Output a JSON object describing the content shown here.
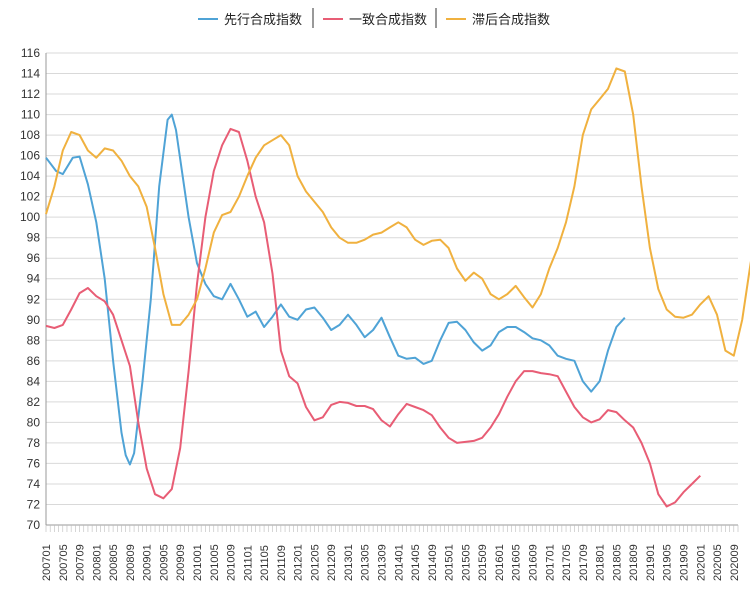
{
  "chart_data": {
    "type": "line",
    "legend_position": "top",
    "grid": true,
    "ylim": [
      70,
      116
    ],
    "y_ticks": [
      "70",
      "72",
      "74",
      "76",
      "78",
      "80",
      "82",
      "84",
      "86",
      "88",
      "90",
      "92",
      "94",
      "96",
      "98",
      "100",
      "102",
      "104",
      "106",
      "108",
      "110",
      "112",
      "114",
      "116"
    ],
    "x_tick_labels": [
      "200701",
      "200705",
      "200709",
      "200801",
      "200805",
      "200809",
      "200901",
      "200905",
      "200909",
      "201001",
      "201005",
      "201009",
      "201101",
      "201105",
      "201109",
      "201201",
      "201205",
      "201209",
      "201301",
      "201305",
      "201309",
      "201401",
      "201405",
      "201409",
      "201501",
      "201505",
      "201509",
      "201601",
      "201605",
      "201609",
      "201701",
      "201705",
      "201709",
      "201801",
      "201805",
      "201809",
      "201901",
      "201905",
      "201909",
      "202001",
      "202005",
      "202009"
    ],
    "series": [
      {
        "name": "先行合成指数",
        "color": "#4fa3d6",
        "points": [
          [
            0,
            105.8
          ],
          [
            1.2,
            104.5
          ],
          [
            2,
            104.2
          ],
          [
            3.2,
            105.8
          ],
          [
            4,
            105.9
          ],
          [
            5,
            103.2
          ],
          [
            6,
            99.5
          ],
          [
            7,
            94
          ],
          [
            8,
            86
          ],
          [
            9,
            79
          ],
          [
            9.5,
            76.8
          ],
          [
            10,
            75.9
          ],
          [
            10.5,
            77
          ],
          [
            11.5,
            84
          ],
          [
            12.5,
            92
          ],
          [
            13.5,
            103
          ],
          [
            14.5,
            109.5
          ],
          [
            15,
            110
          ],
          [
            15.5,
            108.5
          ],
          [
            17,
            100
          ],
          [
            18,
            95.5
          ],
          [
            19,
            93.5
          ],
          [
            20,
            92.3
          ],
          [
            21,
            92
          ],
          [
            22,
            93.5
          ],
          [
            23,
            92
          ],
          [
            24,
            90.3
          ],
          [
            25,
            90.8
          ],
          [
            26,
            89.3
          ],
          [
            27,
            90.3
          ],
          [
            28,
            91.5
          ],
          [
            29,
            90.3
          ],
          [
            30,
            90
          ],
          [
            31,
            91
          ],
          [
            32,
            91.2
          ],
          [
            33,
            90.2
          ],
          [
            34,
            89
          ],
          [
            35,
            89.5
          ],
          [
            36,
            90.5
          ],
          [
            37,
            89.5
          ],
          [
            38,
            88.3
          ],
          [
            39,
            89
          ],
          [
            40,
            90.2
          ],
          [
            41,
            88.3
          ],
          [
            42,
            86.5
          ],
          [
            43,
            86.2
          ],
          [
            44,
            86.3
          ],
          [
            45,
            85.7
          ],
          [
            46,
            86
          ],
          [
            47,
            88
          ],
          [
            48,
            89.7
          ],
          [
            49,
            89.8
          ],
          [
            50,
            89
          ],
          [
            51,
            87.8
          ],
          [
            52,
            87
          ],
          [
            53,
            87.5
          ],
          [
            54,
            88.8
          ],
          [
            55,
            89.3
          ],
          [
            56,
            89.3
          ],
          [
            57,
            88.8
          ],
          [
            58,
            88.2
          ],
          [
            59,
            88
          ],
          [
            60,
            87.5
          ],
          [
            61,
            86.5
          ],
          [
            62,
            86.2
          ],
          [
            63,
            86
          ],
          [
            64,
            84
          ],
          [
            65,
            83
          ],
          [
            66,
            84
          ],
          [
            67,
            87
          ],
          [
            68,
            89.3
          ],
          [
            69,
            90.2
          ]
        ]
      },
      {
        "name": "一致合成指数",
        "color": "#e85d75",
        "points": [
          [
            0,
            89.4
          ],
          [
            1,
            89.2
          ],
          [
            2,
            89.5
          ],
          [
            3,
            91
          ],
          [
            4,
            92.6
          ],
          [
            5,
            93.1
          ],
          [
            6,
            92.3
          ],
          [
            7,
            91.8
          ],
          [
            8,
            90.5
          ],
          [
            9,
            88
          ],
          [
            10,
            85.5
          ],
          [
            11,
            80
          ],
          [
            12,
            75.5
          ],
          [
            13,
            73
          ],
          [
            14,
            72.6
          ],
          [
            15,
            73.5
          ],
          [
            16,
            77.5
          ],
          [
            17,
            85
          ],
          [
            18,
            93.5
          ],
          [
            19,
            100
          ],
          [
            20,
            104.5
          ],
          [
            21,
            107
          ],
          [
            22,
            108.6
          ],
          [
            23,
            108.3
          ],
          [
            24,
            105.5
          ],
          [
            25,
            102
          ],
          [
            26,
            99.5
          ],
          [
            27,
            94.5
          ],
          [
            28,
            87
          ],
          [
            29,
            84.5
          ],
          [
            30,
            83.8
          ],
          [
            31,
            81.5
          ],
          [
            32,
            80.2
          ],
          [
            33,
            80.5
          ],
          [
            34,
            81.7
          ],
          [
            35,
            82
          ],
          [
            36,
            81.9
          ],
          [
            37,
            81.6
          ],
          [
            38,
            81.6
          ],
          [
            39,
            81.3
          ],
          [
            40,
            80.2
          ],
          [
            41,
            79.6
          ],
          [
            42,
            80.8
          ],
          [
            43,
            81.8
          ],
          [
            44,
            81.5
          ],
          [
            45,
            81.2
          ],
          [
            46,
            80.7
          ],
          [
            47,
            79.5
          ],
          [
            48,
            78.5
          ],
          [
            49,
            78
          ],
          [
            50,
            78.1
          ],
          [
            51,
            78.2
          ],
          [
            52,
            78.5
          ],
          [
            53,
            79.5
          ],
          [
            54,
            80.8
          ],
          [
            55,
            82.5
          ],
          [
            56,
            84
          ],
          [
            57,
            85
          ],
          [
            58,
            85
          ],
          [
            59,
            84.8
          ],
          [
            60,
            84.7
          ],
          [
            61,
            84.5
          ],
          [
            62,
            83
          ],
          [
            63,
            81.5
          ],
          [
            64,
            80.5
          ],
          [
            65,
            80
          ],
          [
            66,
            80.3
          ],
          [
            67,
            81.2
          ],
          [
            68,
            81
          ],
          [
            69,
            80.2
          ],
          [
            70,
            79.5
          ],
          [
            71,
            78
          ],
          [
            72,
            76
          ],
          [
            73,
            73
          ],
          [
            74,
            71.8
          ],
          [
            75,
            72.2
          ],
          [
            76,
            73.2
          ],
          [
            77,
            74
          ],
          [
            78,
            74.8
          ]
        ]
      },
      {
        "name": "滞后合成指数",
        "color": "#f0b13f",
        "points": [
          [
            0,
            100.3
          ],
          [
            1,
            103
          ],
          [
            2,
            106.5
          ],
          [
            3,
            108.3
          ],
          [
            4,
            108
          ],
          [
            5,
            106.5
          ],
          [
            6,
            105.8
          ],
          [
            7,
            106.7
          ],
          [
            8,
            106.5
          ],
          [
            9,
            105.5
          ],
          [
            10,
            104
          ],
          [
            11,
            103
          ],
          [
            12,
            101
          ],
          [
            13,
            97
          ],
          [
            14,
            92.5
          ],
          [
            15,
            89.5
          ],
          [
            16,
            89.5
          ],
          [
            17,
            90.5
          ],
          [
            18,
            92
          ],
          [
            19,
            95
          ],
          [
            20,
            98.5
          ],
          [
            21,
            100.2
          ],
          [
            22,
            100.5
          ],
          [
            23,
            102
          ],
          [
            24,
            104
          ],
          [
            25,
            105.8
          ],
          [
            26,
            107
          ],
          [
            27,
            107.5
          ],
          [
            28,
            108
          ],
          [
            29,
            107
          ],
          [
            30,
            104
          ],
          [
            31,
            102.5
          ],
          [
            32,
            101.5
          ],
          [
            33,
            100.5
          ],
          [
            34,
            99
          ],
          [
            35,
            98
          ],
          [
            36,
            97.5
          ],
          [
            37,
            97.5
          ],
          [
            38,
            97.8
          ],
          [
            39,
            98.3
          ],
          [
            40,
            98.5
          ],
          [
            41,
            99
          ],
          [
            42,
            99.5
          ],
          [
            43,
            99
          ],
          [
            44,
            97.8
          ],
          [
            45,
            97.3
          ],
          [
            46,
            97.7
          ],
          [
            47,
            97.8
          ],
          [
            48,
            97
          ],
          [
            49,
            95
          ],
          [
            50,
            93.8
          ],
          [
            51,
            94.6
          ],
          [
            52,
            94
          ],
          [
            53,
            92.5
          ],
          [
            54,
            92
          ],
          [
            55,
            92.5
          ],
          [
            56,
            93.3
          ],
          [
            57,
            92.2
          ],
          [
            58,
            91.2
          ],
          [
            59,
            92.5
          ],
          [
            60,
            95
          ],
          [
            61,
            97
          ],
          [
            62,
            99.5
          ],
          [
            63,
            103
          ],
          [
            64,
            108
          ],
          [
            65,
            110.5
          ],
          [
            66,
            111.5
          ],
          [
            67,
            112.5
          ],
          [
            68,
            114.5
          ],
          [
            69,
            114.2
          ],
          [
            70,
            110
          ],
          [
            71,
            103
          ],
          [
            72,
            97
          ],
          [
            73,
            93
          ],
          [
            74,
            91
          ],
          [
            75,
            90.3
          ],
          [
            76,
            90.2
          ],
          [
            77,
            90.5
          ],
          [
            78,
            91.5
          ],
          [
            79,
            92.3
          ],
          [
            80,
            90.5
          ],
          [
            81,
            87
          ],
          [
            82,
            86.5
          ],
          [
            83,
            90
          ],
          [
            84,
            95.5
          ],
          [
            85,
            100.3
          ]
        ]
      }
    ]
  }
}
